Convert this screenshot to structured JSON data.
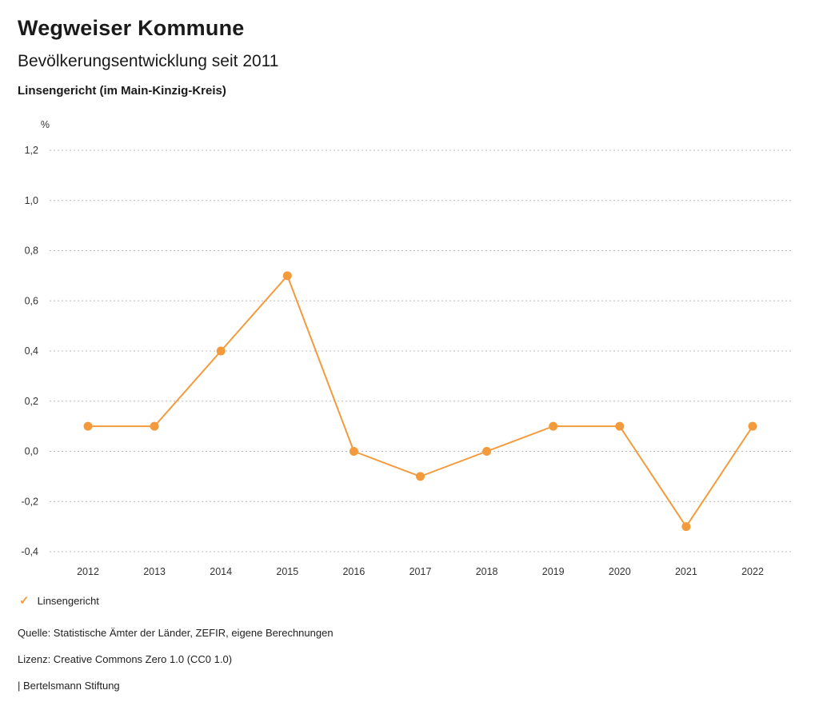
{
  "header": {
    "title": "Wegweiser Kommune",
    "subtitle": "Bevölkerungsentwicklung seit 2011",
    "location": "Linsengericht (im Main-Kinzig-Kreis)"
  },
  "chart_data": {
    "type": "line",
    "title": "Bevölkerungsentwicklung seit 2011",
    "subtitle": "Linsengericht (im Main-Kinzig-Kreis)",
    "unit_label": "%",
    "categories": [
      "2012",
      "2013",
      "2014",
      "2015",
      "2016",
      "2017",
      "2018",
      "2019",
      "2020",
      "2021",
      "2022"
    ],
    "series": [
      {
        "name": "Linsengericht",
        "values": [
          0.1,
          0.1,
          0.4,
          0.7,
          0.0,
          -0.1,
          0.0,
          0.1,
          0.1,
          -0.3,
          0.1
        ],
        "color": "#f39b3c"
      }
    ],
    "ylim": [
      -0.4,
      1.2
    ],
    "yticks": [
      {
        "v": 1.2,
        "label": "1,2"
      },
      {
        "v": 1.0,
        "label": "1,0"
      },
      {
        "v": 0.8,
        "label": "0,8"
      },
      {
        "v": 0.6,
        "label": "0,6"
      },
      {
        "v": 0.4,
        "label": "0,4"
      },
      {
        "v": 0.2,
        "label": "0,2"
      },
      {
        "v": 0.0,
        "label": "0,0"
      },
      {
        "v": -0.2,
        "label": "-0,2"
      },
      {
        "v": -0.4,
        "label": "-0,4"
      }
    ],
    "grid": "horizontal-dotted",
    "legend_position": "bottom-left",
    "grid_color": "#b8b8b8",
    "axis_text_color": "#333333"
  },
  "legend": {
    "items": [
      {
        "label": "Linsengericht",
        "color": "#f39b3c",
        "icon": "check"
      }
    ]
  },
  "footer": {
    "source": "Quelle: Statistische Ämter der Länder, ZEFIR, eigene Berechnungen",
    "license": "Lizenz: Creative Commons Zero 1.0 (CC0 1.0)",
    "attribution": "| Bertelsmann Stiftung"
  }
}
